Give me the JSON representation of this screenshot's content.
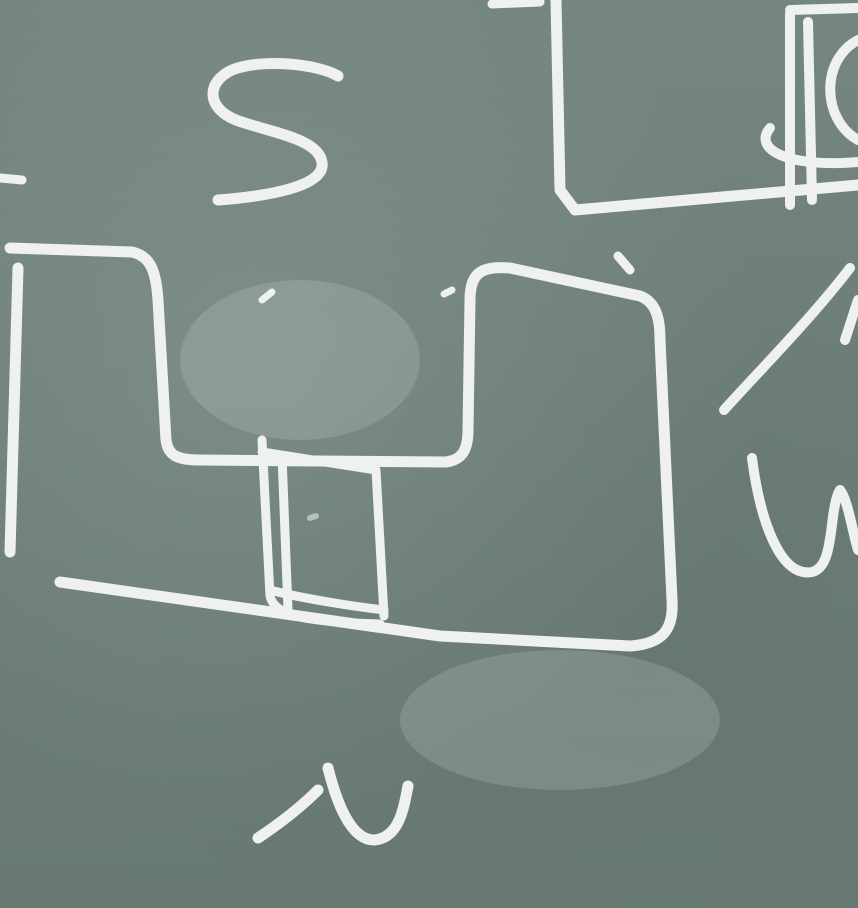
{
  "scene": {
    "surface": "chalkboard",
    "background_color": "#6f807a",
    "chalk_color": "#eef1ee"
  },
  "marks": {
    "letter_s": "S",
    "letter_w": "W",
    "letter_n": "N"
  }
}
